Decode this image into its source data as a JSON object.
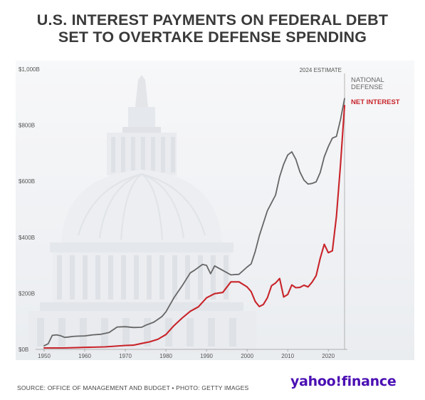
{
  "title_line1": "U.S. INTEREST PAYMENTS ON FEDERAL DEBT",
  "title_line2": "SET TO OVERTAKE DEFENSE SPENDING",
  "source": "SOURCE: OFFICE OF MANAGEMENT AND BUDGET • PHOTO: GETTY IMAGES",
  "brand": {
    "part1": "yahoo",
    "mark": "!",
    "part2": "finance"
  },
  "colors": {
    "defense": "#666666",
    "interest": "#c8242a",
    "background_photo": "#e6e9ee"
  },
  "chart_data": {
    "type": "line",
    "title": "U.S. INTEREST PAYMENTS ON FEDERAL DEBT SET TO OVERTAKE DEFENSE SPENDING",
    "xlabel": "",
    "ylabel": "",
    "xlim": [
      1950,
      2024
    ],
    "ylim": [
      0,
      1000
    ],
    "x_ticks": [
      1950,
      1960,
      1970,
      1980,
      1990,
      2000,
      2010,
      2020
    ],
    "y_ticks": [
      {
        "value": 0,
        "label": "$0B"
      },
      {
        "value": 200,
        "label": "$200B"
      },
      {
        "value": 400,
        "label": "$400B"
      },
      {
        "value": 600,
        "label": "$600B"
      },
      {
        "value": 800,
        "label": "$800B"
      },
      {
        "value": 1000,
        "label": "$1,000B"
      }
    ],
    "annotation": {
      "x": 2024,
      "label": "2024 ESTIMATE"
    },
    "grid": false,
    "legend": "right",
    "series": [
      {
        "name": "NATIONAL DEFENSE",
        "color": "#666666",
        "x": [
          1950,
          1951,
          1952,
          1953,
          1954,
          1955,
          1956,
          1957,
          1958,
          1960,
          1962,
          1964,
          1966,
          1967,
          1968,
          1970,
          1972,
          1974,
          1975,
          1977,
          1979,
          1980,
          1982,
          1984,
          1986,
          1987,
          1989,
          1990,
          1991,
          1992,
          1994,
          1996,
          1998,
          2000,
          2001,
          2002,
          2003,
          2005,
          2007,
          2008,
          2009,
          2010,
          2011,
          2012,
          2013,
          2014,
          2015,
          2016,
          2017,
          2018,
          2019,
          2020,
          2021,
          2022,
          2023,
          2024
        ],
        "y": [
          13,
          20,
          50,
          52,
          49,
          43,
          44,
          46,
          47,
          48,
          52,
          54,
          60,
          70,
          80,
          81,
          78,
          79,
          86,
          97,
          117,
          134,
          185,
          227,
          273,
          282,
          303,
          300,
          270,
          298,
          282,
          266,
          268,
          294,
          305,
          349,
          405,
          495,
          551,
          616,
          661,
          694,
          705,
          678,
          633,
          604,
          590,
          592,
          598,
          631,
          687,
          724,
          754,
          760,
          820,
          895
        ]
      },
      {
        "name": "NET INTEREST",
        "color": "#c8242a",
        "x": [
          1950,
          1955,
          1960,
          1965,
          1970,
          1972,
          1974,
          1976,
          1978,
          1980,
          1982,
          1984,
          1986,
          1988,
          1990,
          1992,
          1994,
          1996,
          1998,
          2000,
          2001,
          2002,
          2003,
          2004,
          2005,
          2006,
          2007,
          2008,
          2009,
          2010,
          2011,
          2012,
          2013,
          2014,
          2015,
          2016,
          2017,
          2018,
          2019,
          2020,
          2021,
          2022,
          2023,
          2024
        ],
        "y": [
          5,
          5,
          7,
          9,
          14,
          15,
          21,
          27,
          36,
          53,
          85,
          112,
          136,
          152,
          184,
          199,
          203,
          241,
          241,
          223,
          206,
          171,
          153,
          160,
          184,
          227,
          237,
          253,
          187,
          196,
          230,
          220,
          221,
          229,
          223,
          240,
          263,
          325,
          375,
          345,
          352,
          475,
          659,
          870
        ]
      }
    ]
  }
}
